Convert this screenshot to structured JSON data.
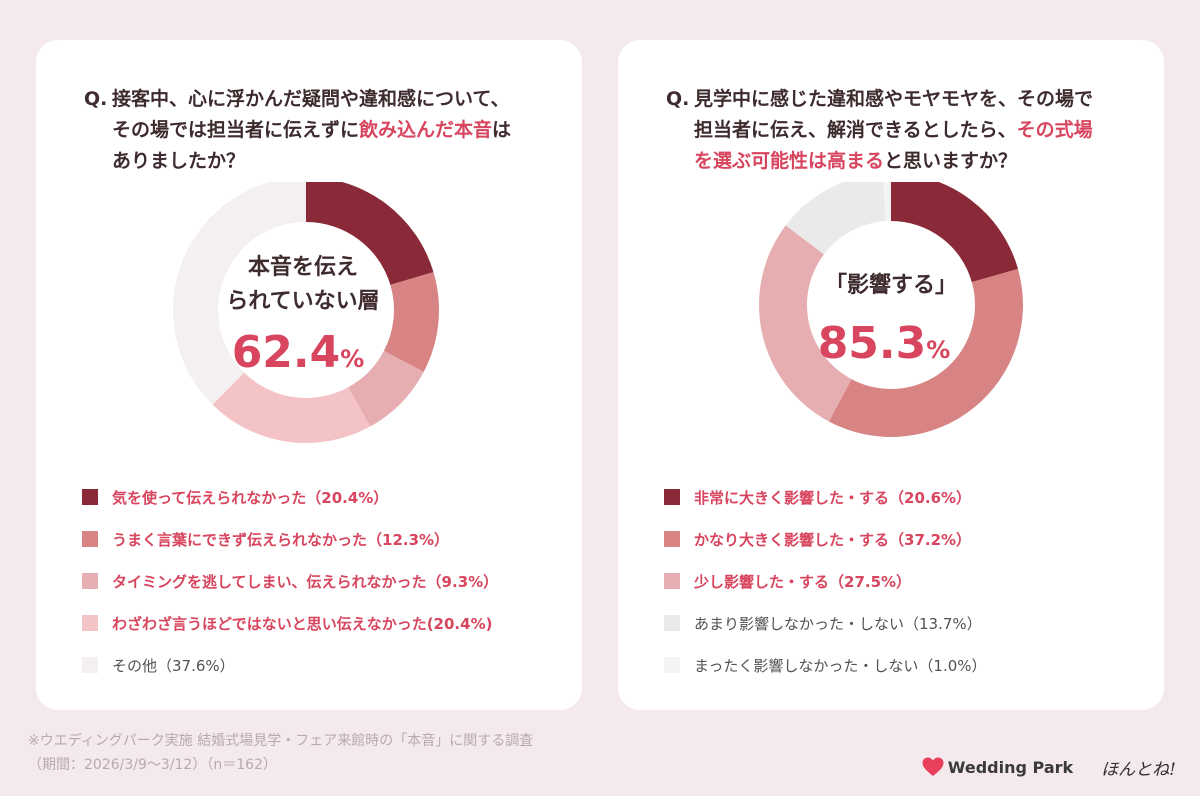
{
  "left": {
    "question": {
      "prefix": "Q.",
      "line1": "接客中、心に浮かんだ疑問や違和感について、",
      "line2_pre": "その場では担当者に伝えずに",
      "line2_hl": "飲み込んだ本音",
      "line2_post": "は",
      "line3": "ありましたか？"
    },
    "center": {
      "line1": "本音を伝え",
      "line2": "られていない層",
      "value": "62.4",
      "unit": "%"
    },
    "legend": [
      {
        "label": "気を使って伝えられなかった（20.4%）",
        "color": "#8a2a38"
      },
      {
        "label": "うまく言葉にできず伝えられなかった（12.3%）",
        "color": "#d98484"
      },
      {
        "label": "タイミングを逃してしまい、伝えられなかった（9.3%）",
        "color": "#e6aeb1"
      },
      {
        "label": "わざわざ言うほどではないと思い伝えなかった(20.4%)",
        "color": "#f3c3c6"
      },
      {
        "label": "その他（37.6%）",
        "color": "#f4eff1"
      }
    ]
  },
  "right": {
    "question": {
      "prefix": "Q.",
      "line1": "見学中に感じた違和感やモヤモヤを、その場で",
      "line2_pre": "担当者に伝え、解消できるとしたら、",
      "line2_hl": "その式場",
      "line3_hl": "を選ぶ可能性は高まる",
      "line3_post": "と思いますか？"
    },
    "center": {
      "line1": "「影響する」",
      "value": "85.3",
      "unit": "%"
    },
    "legend": [
      {
        "label": "非常に大きく影響した・する（20.6%）",
        "color": "#8a2a38"
      },
      {
        "label": "かなり大きく影響した・する（37.2%）",
        "color": "#d98484"
      },
      {
        "label": "少し影響した・する（27.5%）",
        "color": "#e6aeb1"
      },
      {
        "label": "あまり影響しなかった・しない（13.7%）",
        "color": "#ece9eb"
      },
      {
        "label": "まったく影響しなかった・しない（1.0%）",
        "color": "#f5f3f4"
      }
    ]
  },
  "footer": {
    "note_line1": "※ウエディングパーク実施 結婚式場見学・フェア来館時の「本音」に関する調査",
    "note_line2": "（期間：2026/3/9〜3/12）（n＝162）"
  },
  "brand": {
    "name": "Wedding Park",
    "tagline": "ほんとね!",
    "heart_color": "#e8405c"
  },
  "accent_color": "#d8455e",
  "chart_data": [
    {
      "type": "pie",
      "subtype": "donut",
      "categories": [
        "気を使って伝えられなかった",
        "うまく言葉にできず伝えられなかった",
        "タイミングを逃してしまい、伝えられなかった",
        "わざわざ言うほどではないと思い伝えなかった",
        "その他"
      ],
      "values": [
        20.4,
        12.3,
        9.3,
        20.4,
        37.6
      ],
      "colors": [
        "#8a2a38",
        "#d98484",
        "#e6aeb1",
        "#f3c3c6",
        "#f4eff1"
      ],
      "legend": "bottom"
    },
    {
      "type": "pie",
      "subtype": "donut",
      "categories": [
        "非常に大きく影響した・する",
        "かなり大きく影響した・する",
        "少し影響した・する",
        "あまり影響しなかった・しない",
        "まったく影響しなかった・しない"
      ],
      "values": [
        20.6,
        37.2,
        27.5,
        13.7,
        1.0
      ],
      "colors": [
        "#8a2a38",
        "#d98484",
        "#e6aeb1",
        "#ece9eb",
        "#f5f3f4"
      ],
      "legend": "bottom"
    }
  ]
}
